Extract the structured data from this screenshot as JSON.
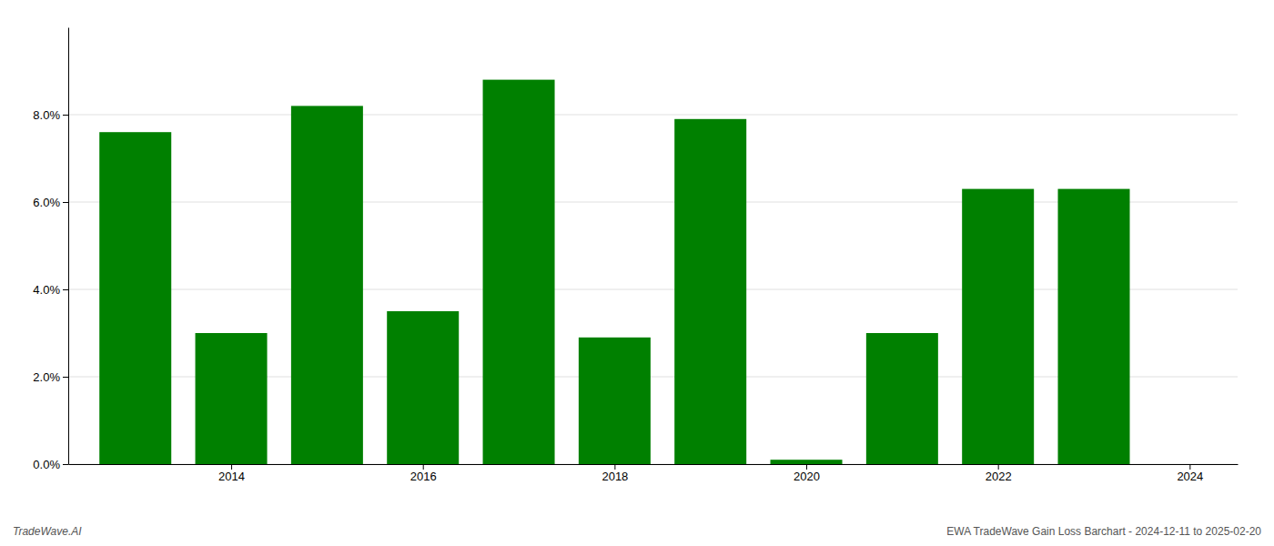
{
  "chart_data": {
    "type": "bar",
    "x": [
      2013,
      2014,
      2015,
      2016,
      2017,
      2018,
      2019,
      2020,
      2021,
      2022,
      2023
    ],
    "values": [
      0.076,
      0.03,
      0.082,
      0.035,
      0.088,
      0.029,
      0.079,
      0.001,
      0.03,
      0.063,
      0.063
    ],
    "color": "#008000",
    "xlim": [
      2012.3,
      2024.5
    ],
    "xticks": [
      2014,
      2016,
      2018,
      2020,
      2022,
      2024
    ],
    "ylim": [
      0,
      0.1
    ],
    "yticks": [
      {
        "value": 0.0,
        "label": "0.0%"
      },
      {
        "value": 0.02,
        "label": "2.0%"
      },
      {
        "value": 0.04,
        "label": "4.0%"
      },
      {
        "value": 0.06,
        "label": "6.0%"
      },
      {
        "value": 0.08,
        "label": "8.0%"
      }
    ],
    "grid": true,
    "annotations": [
      "TradeWave.AI",
      "EWA TradeWave Gain Loss Barchart - 2024-12-11 to 2025-02-20"
    ]
  }
}
